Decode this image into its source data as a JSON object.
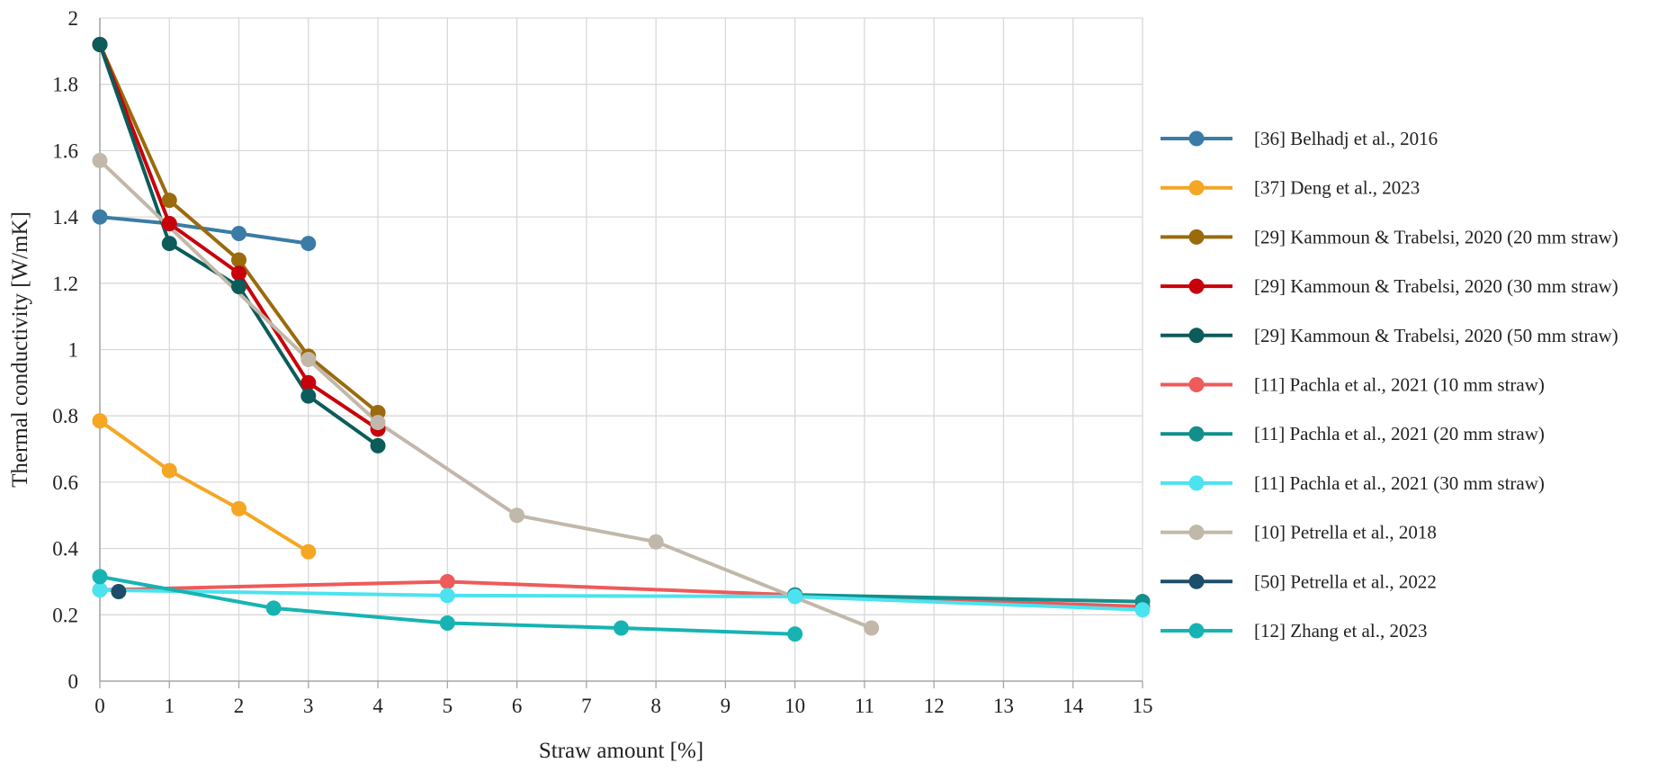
{
  "chart_data": {
    "type": "line",
    "title": "",
    "xlabel": "Straw amount [%]",
    "ylabel": "Thermal conductivity [W/mK]",
    "xlim": [
      0,
      15
    ],
    "ylim": [
      0,
      2
    ],
    "x_ticks": [
      0,
      1,
      2,
      3,
      4,
      5,
      6,
      7,
      8,
      9,
      10,
      11,
      12,
      13,
      14,
      15
    ],
    "y_ticks": [
      0,
      0.2,
      0.4,
      0.6,
      0.8,
      1,
      1.2,
      1.4,
      1.6,
      1.8,
      2
    ],
    "y_tick_labels": [
      "0",
      "0.2",
      "0.4",
      "0.6",
      "0.8",
      "1",
      "1.2",
      "1.4",
      "1.6",
      "1.8",
      "2"
    ],
    "grid": true,
    "legend_position": "right",
    "series": [
      {
        "name": "[36] Belhadj et al., 2016",
        "color": "#3a7ca5",
        "points": [
          [
            0,
            1.4
          ],
          [
            1,
            1.38
          ],
          [
            2,
            1.35
          ],
          [
            3,
            1.32
          ]
        ]
      },
      {
        "name": "[37] Deng et al., 2023",
        "color": "#f5a623",
        "points": [
          [
            0,
            0.785
          ],
          [
            1,
            0.635
          ],
          [
            2,
            0.52
          ],
          [
            3,
            0.39
          ]
        ]
      },
      {
        "name": "[29] Kammoun & Trabelsi, 2020 (20 mm straw)",
        "color": "#9b6a0d",
        "points": [
          [
            0,
            1.92
          ],
          [
            1,
            1.45
          ],
          [
            2,
            1.27
          ],
          [
            3,
            0.98
          ],
          [
            4,
            0.81
          ]
        ]
      },
      {
        "name": "[29] Kammoun & Trabelsi, 2020 (30 mm straw)",
        "color": "#c8000a",
        "points": [
          [
            0,
            1.92
          ],
          [
            1,
            1.38
          ],
          [
            2,
            1.23
          ],
          [
            3,
            0.9
          ],
          [
            4,
            0.76
          ]
        ]
      },
      {
        "name": "[29] Kammoun & Trabelsi, 2020 (50 mm straw)",
        "color": "#0b5c5a",
        "points": [
          [
            0,
            1.92
          ],
          [
            1,
            1.32
          ],
          [
            2,
            1.19
          ],
          [
            3,
            0.86
          ],
          [
            4,
            0.71
          ]
        ]
      },
      {
        "name": "[11] Pachla et al., 2021 (10 mm straw)",
        "color": "#ef5a5a",
        "points": [
          [
            0,
            0.275
          ],
          [
            5,
            0.3
          ],
          [
            10,
            0.26
          ],
          [
            15,
            0.225
          ]
        ]
      },
      {
        "name": "[11] Pachla et al., 2021 (20 mm straw)",
        "color": "#128f8b",
        "points": [
          [
            10,
            0.26
          ],
          [
            15,
            0.24
          ]
        ]
      },
      {
        "name": "[11] Pachla et al., 2021 (30 mm straw)",
        "color": "#4be3ef",
        "points": [
          [
            0,
            0.275
          ],
          [
            5,
            0.258
          ],
          [
            10,
            0.255
          ],
          [
            15,
            0.215
          ]
        ]
      },
      {
        "name": "[10] Petrella et al., 2018",
        "color": "#c2b8aa",
        "points": [
          [
            0,
            1.57
          ],
          [
            3,
            0.97
          ],
          [
            4,
            0.78
          ],
          [
            6,
            0.5
          ],
          [
            8,
            0.42
          ],
          [
            11.1,
            0.16
          ]
        ]
      },
      {
        "name": "[50] Petrella et al., 2022",
        "color": "#1c4e6b",
        "points": [
          [
            0.27,
            0.27
          ]
        ]
      },
      {
        "name": "[12] Zhang et al., 2023",
        "color": "#17b3b3",
        "points": [
          [
            0,
            0.315
          ],
          [
            2.5,
            0.22
          ],
          [
            5,
            0.175
          ],
          [
            7.5,
            0.16
          ],
          [
            10,
            0.142
          ]
        ]
      }
    ]
  }
}
